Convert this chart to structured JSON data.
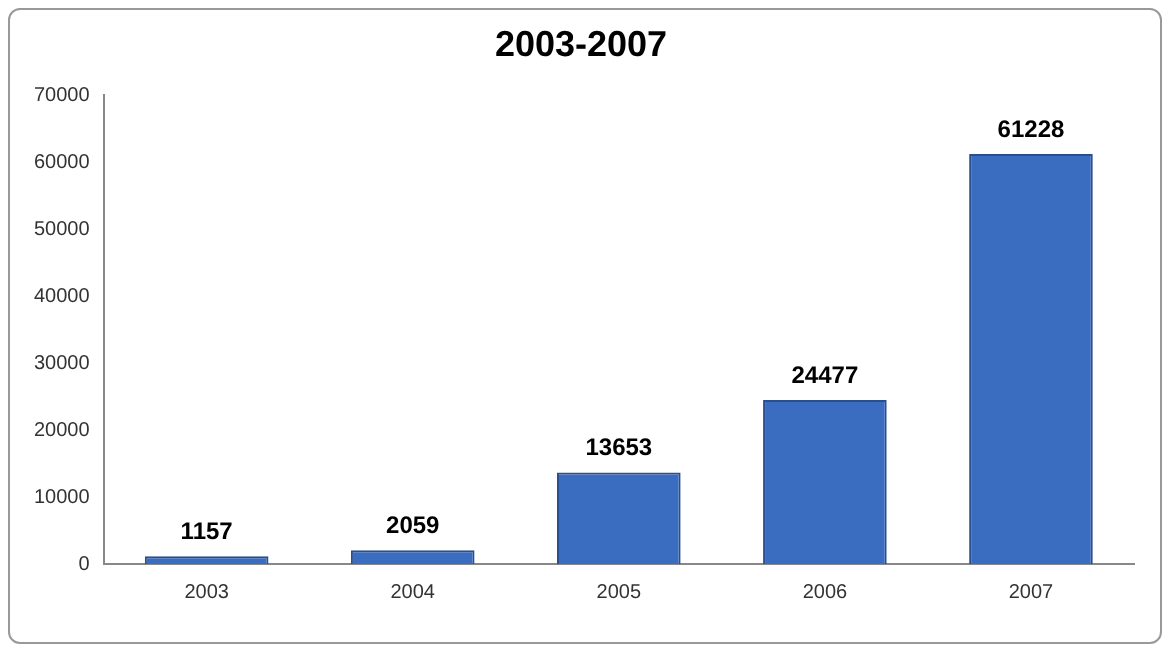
{
  "chart_data": {
    "type": "bar",
    "title": "2003-2007",
    "categories": [
      "2003",
      "2004",
      "2005",
      "2006",
      "2007"
    ],
    "values": [
      1157,
      2059,
      13653,
      24477,
      61228
    ],
    "color": "#3a6cc0",
    "ylim": [
      0,
      70000
    ],
    "yticks": [
      0,
      10000,
      20000,
      30000,
      40000,
      50000,
      60000,
      70000
    ],
    "grid": false,
    "legend": false,
    "data_labels": true
  }
}
